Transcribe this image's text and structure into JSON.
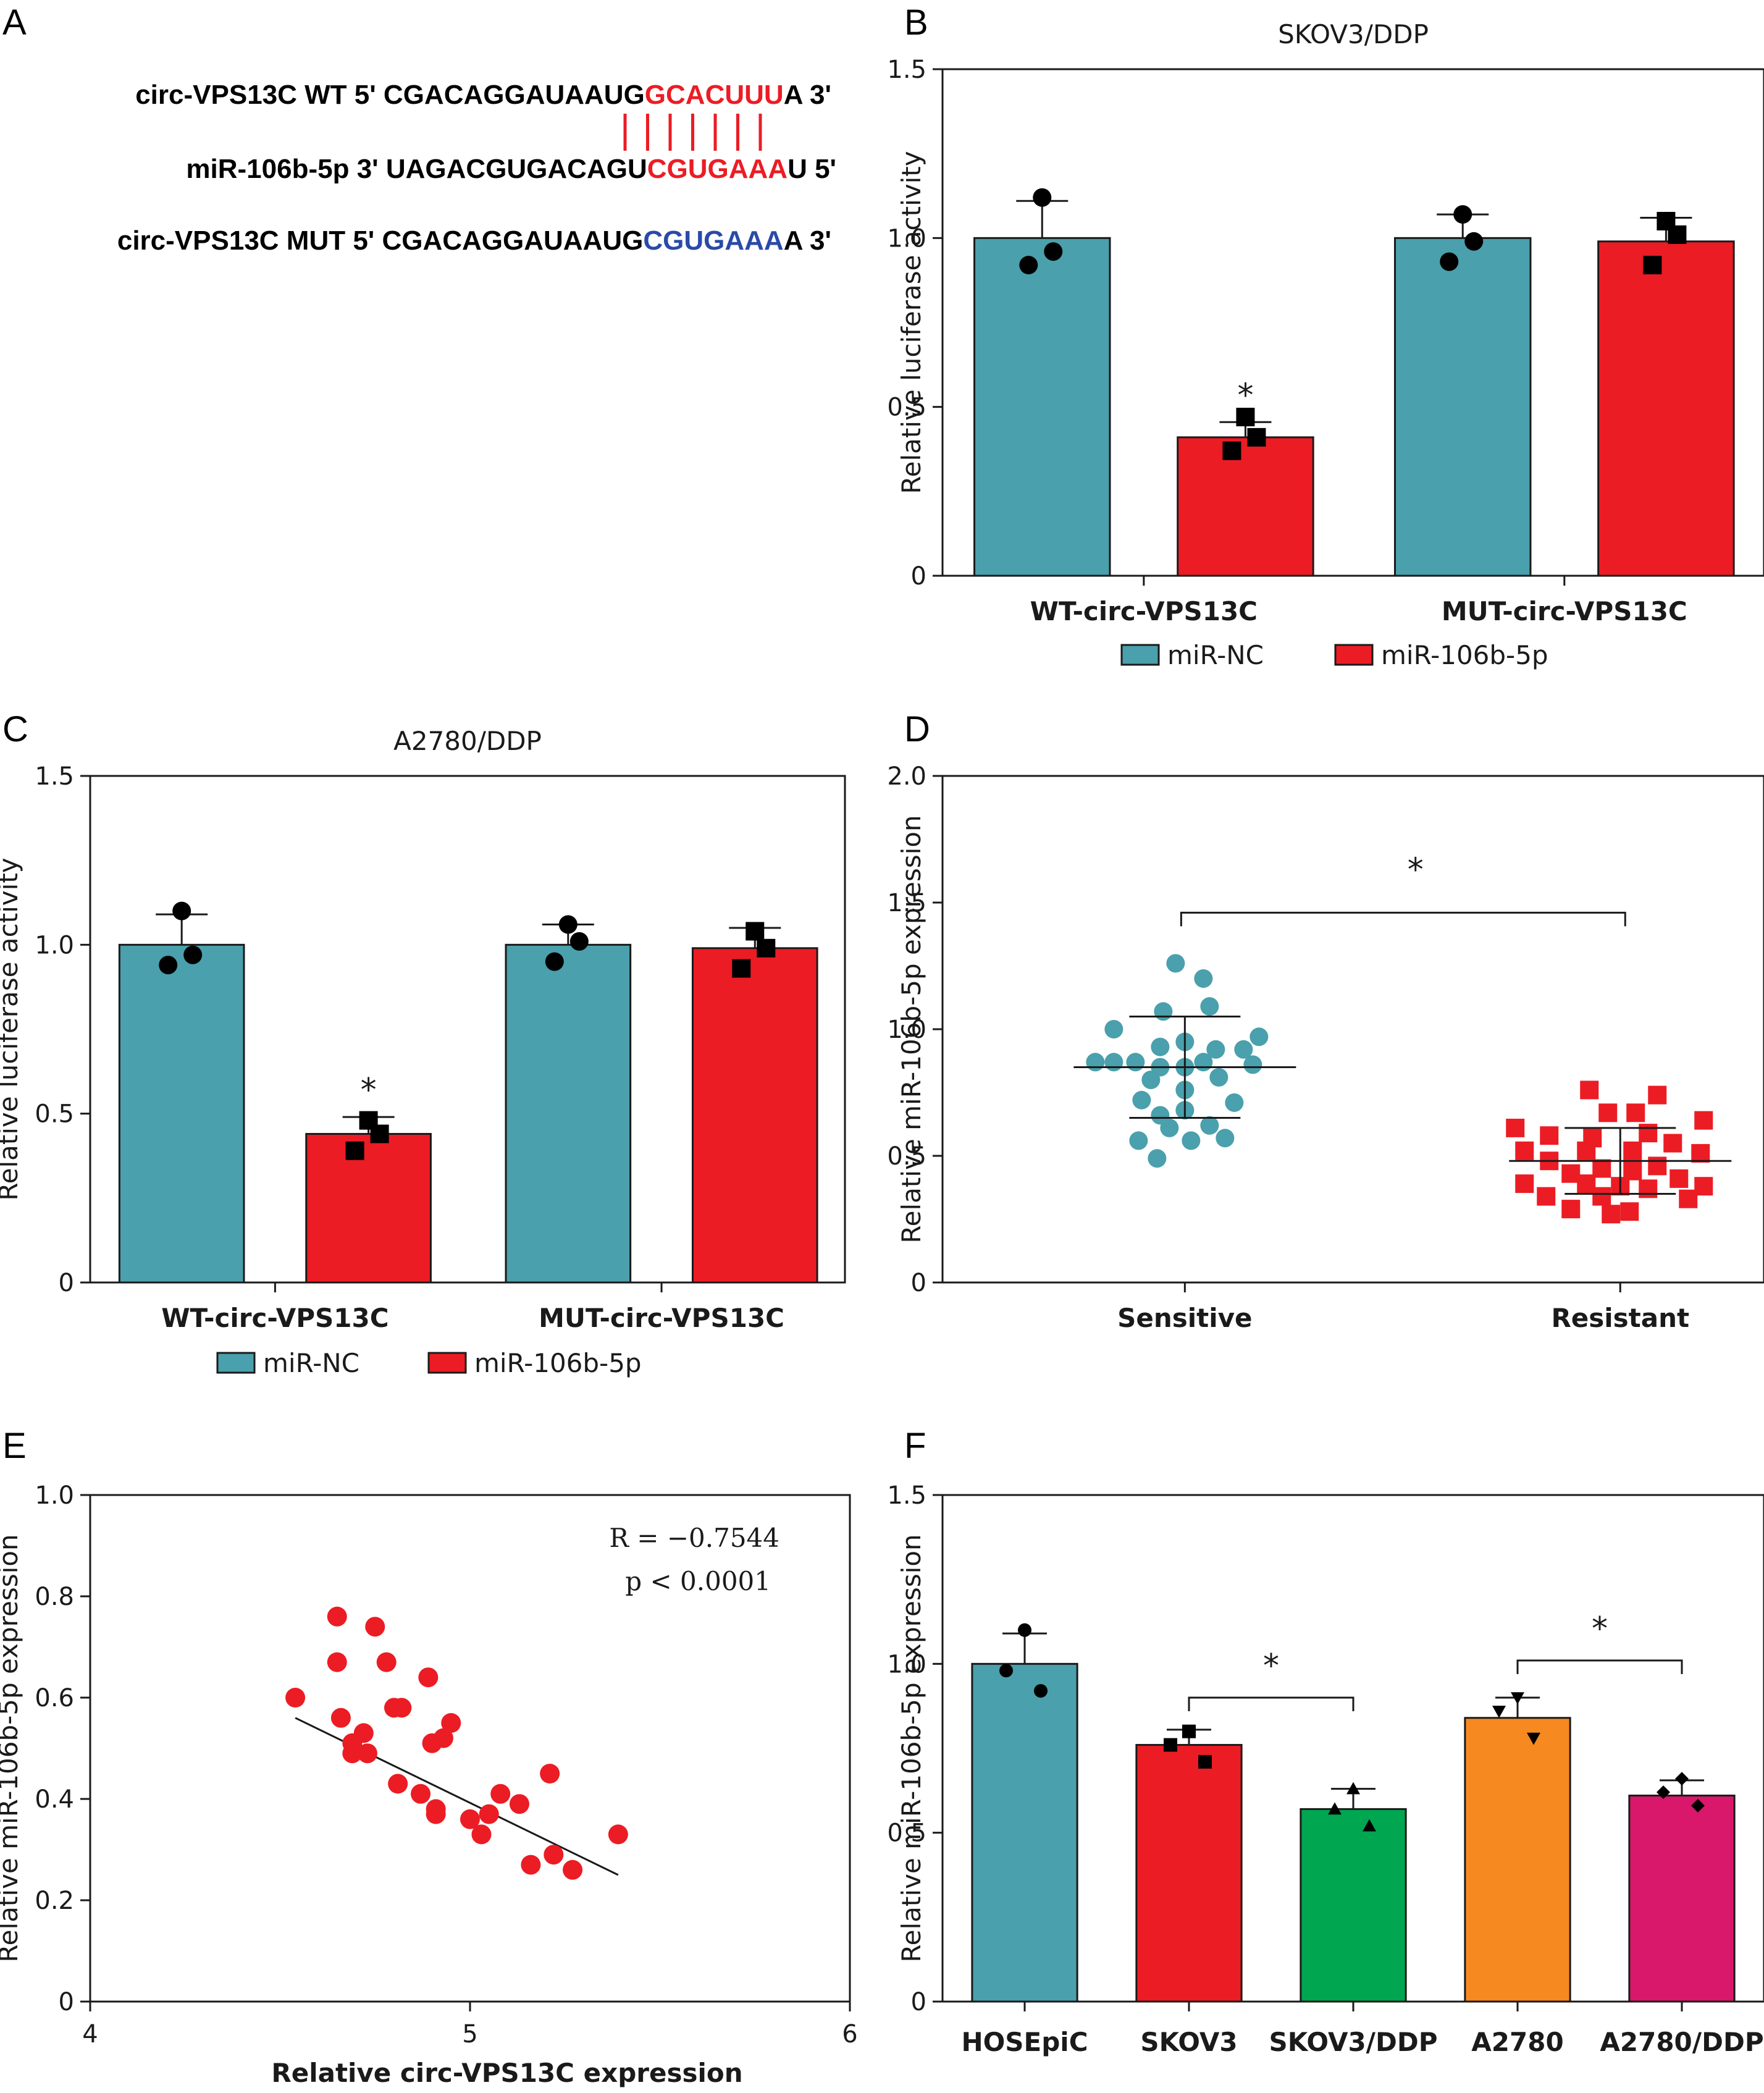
{
  "colors": {
    "teal": "#4aa0ac",
    "red": "#ec1c24",
    "green": "#00a650",
    "orange": "#f6891f",
    "magenta": "#d9176b",
    "blue_seq": "#2a4aa8",
    "axis": "#1a1a1a"
  },
  "panel_letters": [
    "A",
    "B",
    "C",
    "D",
    "E",
    "F"
  ],
  "panel_a": {
    "lines": [
      {
        "prefix": "circ-VPS13C WT 5' CGACAGGAUAAUG",
        "highlight": "GCACUUU",
        "suffix": "A 3'",
        "highlight_color": "red"
      },
      {
        "prefix": "miR-106b-5p 3' UAGACGUGACAGU",
        "highlight": "CGUGAAA",
        "suffix": "U 5'",
        "highlight_color": "red"
      },
      {
        "prefix": "circ-VPS13C MUT 5' CGACAGGAUAAUG",
        "highlight": "CGUGAAA",
        "suffix": "A 3'",
        "highlight_color": "blue"
      }
    ],
    "pairing_lines": 7
  },
  "chart_data": [
    {
      "panel": "B",
      "type": "bar",
      "title": "SKOV3/DDP",
      "ylabel": "Relative luciferase activity",
      "ylim": [
        0,
        1.5
      ],
      "yticks": [
        "0",
        "0.5",
        "1.0",
        "1.5"
      ],
      "categories": [
        "WT-circ-VPS13C",
        "MUT-circ-VPS13C"
      ],
      "series": [
        {
          "name": "miR-NC",
          "color": "#4aa0ac",
          "marker": "circle",
          "values": [
            1.0,
            1.0
          ],
          "errors": [
            0.11,
            0.07
          ],
          "points": [
            [
              1.12,
              0.92,
              0.96
            ],
            [
              1.07,
              0.93,
              0.99
            ]
          ]
        },
        {
          "name": "miR-106b-5p",
          "color": "#ec1c24",
          "marker": "square",
          "values": [
            0.41,
            0.99
          ],
          "errors": [
            0.045,
            0.07
          ],
          "points": [
            [
              0.47,
              0.37,
              0.41
            ],
            [
              1.05,
              0.92,
              1.01
            ]
          ]
        }
      ],
      "annotations": [
        {
          "text": "*",
          "category": 0,
          "series": 1
        }
      ],
      "legend": "bottom"
    },
    {
      "panel": "C",
      "type": "bar",
      "title": "A2780/DDP",
      "ylabel": "Relative luciferase activity",
      "ylim": [
        0,
        1.5
      ],
      "yticks": [
        "0",
        "0.5",
        "1.0",
        "1.5"
      ],
      "categories": [
        "WT-circ-VPS13C",
        "MUT-circ-VPS13C"
      ],
      "series": [
        {
          "name": "miR-NC",
          "color": "#4aa0ac",
          "marker": "circle",
          "values": [
            1.0,
            1.0
          ],
          "errors": [
            0.09,
            0.06
          ],
          "points": [
            [
              1.1,
              0.94,
              0.97
            ],
            [
              1.06,
              0.95,
              1.01
            ]
          ]
        },
        {
          "name": "miR-106b-5p",
          "color": "#ec1c24",
          "marker": "square",
          "values": [
            0.44,
            0.99
          ],
          "errors": [
            0.05,
            0.06
          ],
          "points": [
            [
              0.48,
              0.39,
              0.44
            ],
            [
              1.04,
              0.93,
              0.99
            ]
          ]
        }
      ],
      "annotations": [
        {
          "text": "*",
          "category": 0,
          "series": 1
        }
      ],
      "legend": "bottom"
    },
    {
      "panel": "D",
      "type": "scatter",
      "ylabel": "Relative miR-106b-5p expression",
      "ylim": [
        0,
        2.0
      ],
      "yticks": [
        "0",
        "0.5",
        "1.0",
        "1.5",
        "2.0"
      ],
      "categories": [
        "Sensitive",
        "Resistant"
      ],
      "groups": [
        {
          "name": "Sensitive",
          "color": "#4aa0ac",
          "marker": "circle",
          "mean": 0.85,
          "sd": 0.2,
          "points": [
            [
              -0.23,
              1.0
            ],
            [
              -0.29,
              0.87
            ],
            [
              -0.23,
              0.87
            ],
            [
              -0.16,
              0.87
            ],
            [
              -0.11,
              0.8
            ],
            [
              -0.14,
              0.72
            ],
            [
              -0.15,
              0.56
            ],
            [
              -0.05,
              0.61
            ],
            [
              -0.09,
              0.49
            ],
            [
              -0.08,
              0.66
            ],
            [
              -0.08,
              0.93
            ],
            [
              -0.07,
              1.07
            ],
            [
              -0.03,
              1.26
            ],
            [
              -0.08,
              0.85
            ],
            [
              0.0,
              0.76
            ],
            [
              0.0,
              0.68
            ],
            [
              0.0,
              0.85
            ],
            [
              0.0,
              0.95
            ],
            [
              0.02,
              0.56
            ],
            [
              0.06,
              1.2
            ],
            [
              0.06,
              0.87
            ],
            [
              0.08,
              0.62
            ],
            [
              0.08,
              1.09
            ],
            [
              0.1,
              0.92
            ],
            [
              0.11,
              0.81
            ],
            [
              0.13,
              0.57
            ],
            [
              0.16,
              0.71
            ],
            [
              0.19,
              0.92
            ],
            [
              0.22,
              0.86
            ],
            [
              0.24,
              0.97
            ]
          ]
        },
        {
          "name": "Resistant",
          "color": "#ec1c24",
          "marker": "square",
          "mean": 0.48,
          "sd": 0.13,
          "points": [
            [
              -0.34,
              0.61
            ],
            [
              -0.31,
              0.52
            ],
            [
              -0.23,
              0.58
            ],
            [
              -0.23,
              0.48
            ],
            [
              -0.31,
              0.39
            ],
            [
              -0.24,
              0.34
            ],
            [
              -0.16,
              0.43
            ],
            [
              -0.16,
              0.29
            ],
            [
              -0.11,
              0.39
            ],
            [
              -0.11,
              0.52
            ],
            [
              -0.1,
              0.76
            ],
            [
              -0.09,
              0.57
            ],
            [
              -0.06,
              0.34
            ],
            [
              -0.06,
              0.45
            ],
            [
              -0.04,
              0.67
            ],
            [
              -0.03,
              0.27
            ],
            [
              0.0,
              0.38
            ],
            [
              0.03,
              0.28
            ],
            [
              0.04,
              0.52
            ],
            [
              0.04,
              0.44
            ],
            [
              0.05,
              0.67
            ],
            [
              0.09,
              0.59
            ],
            [
              0.09,
              0.37
            ],
            [
              0.12,
              0.46
            ],
            [
              0.12,
              0.74
            ],
            [
              0.17,
              0.55
            ],
            [
              0.19,
              0.41
            ],
            [
              0.22,
              0.33
            ],
            [
              0.26,
              0.51
            ],
            [
              0.27,
              0.38
            ],
            [
              0.27,
              0.64
            ]
          ]
        }
      ],
      "bracket": {
        "from": 0,
        "to": 1,
        "y": 1.46,
        "text": "*"
      }
    },
    {
      "panel": "E",
      "type": "scatter",
      "xlabel": "Relative circ-VPS13C expression",
      "ylabel": "Relative miR-106b-5p expression",
      "xlim": [
        4,
        6
      ],
      "ylim": [
        0,
        1.0
      ],
      "xticks": [
        "4",
        "5",
        "6"
      ],
      "yticks": [
        "0",
        "0.2",
        "0.4",
        "0.6",
        "0.8",
        "1.0"
      ],
      "color": "#ec1c24",
      "points": [
        [
          4.54,
          0.6
        ],
        [
          4.65,
          0.76
        ],
        [
          4.65,
          0.67
        ],
        [
          4.66,
          0.56
        ],
        [
          4.69,
          0.51
        ],
        [
          4.69,
          0.49
        ],
        [
          4.72,
          0.53
        ],
        [
          4.73,
          0.49
        ],
        [
          4.75,
          0.74
        ],
        [
          4.78,
          0.67
        ],
        [
          4.8,
          0.58
        ],
        [
          4.81,
          0.43
        ],
        [
          4.82,
          0.58
        ],
        [
          4.87,
          0.41
        ],
        [
          4.89,
          0.64
        ],
        [
          4.9,
          0.51
        ],
        [
          4.91,
          0.38
        ],
        [
          4.91,
          0.37
        ],
        [
          4.93,
          0.52
        ],
        [
          4.95,
          0.55
        ],
        [
          5.0,
          0.36
        ],
        [
          5.03,
          0.33
        ],
        [
          5.05,
          0.37
        ],
        [
          5.08,
          0.41
        ],
        [
          5.13,
          0.39
        ],
        [
          5.16,
          0.27
        ],
        [
          5.21,
          0.45
        ],
        [
          5.22,
          0.29
        ],
        [
          5.27,
          0.26
        ],
        [
          5.39,
          0.33
        ]
      ],
      "fit_line": [
        [
          4.54,
          0.56
        ],
        [
          5.39,
          0.25
        ]
      ],
      "annotations": [
        "R = −0.7544",
        "p < 0.0001"
      ]
    },
    {
      "panel": "F",
      "type": "bar",
      "ylabel": "Relative miR-106b-5p expression",
      "ylim": [
        0,
        1.5
      ],
      "yticks": [
        "0",
        "0.5",
        "1.0",
        "1.5"
      ],
      "categories": [
        "HOSEpiC",
        "SKOV3",
        "SKOV3/DDP",
        "A2780",
        "A2780/DDP"
      ],
      "values": [
        1.0,
        0.76,
        0.57,
        0.84,
        0.61
      ],
      "errors": [
        0.09,
        0.045,
        0.06,
        0.06,
        0.045
      ],
      "colors": [
        "#4aa0ac",
        "#ec1c24",
        "#00a650",
        "#f6891f",
        "#d9176b"
      ],
      "markers": [
        "circle",
        "square",
        "triangle",
        "triangle-down",
        "diamond"
      ],
      "points": [
        [
          1.1,
          0.98,
          0.92
        ],
        [
          0.8,
          0.76,
          0.71
        ],
        [
          0.63,
          0.57,
          0.52
        ],
        [
          0.9,
          0.86,
          0.78
        ],
        [
          0.66,
          0.62,
          0.58
        ]
      ],
      "brackets": [
        {
          "from": 1,
          "to": 2,
          "y": 0.9,
          "text": "*"
        },
        {
          "from": 3,
          "to": 4,
          "y": 1.01,
          "text": "*"
        }
      ]
    }
  ]
}
